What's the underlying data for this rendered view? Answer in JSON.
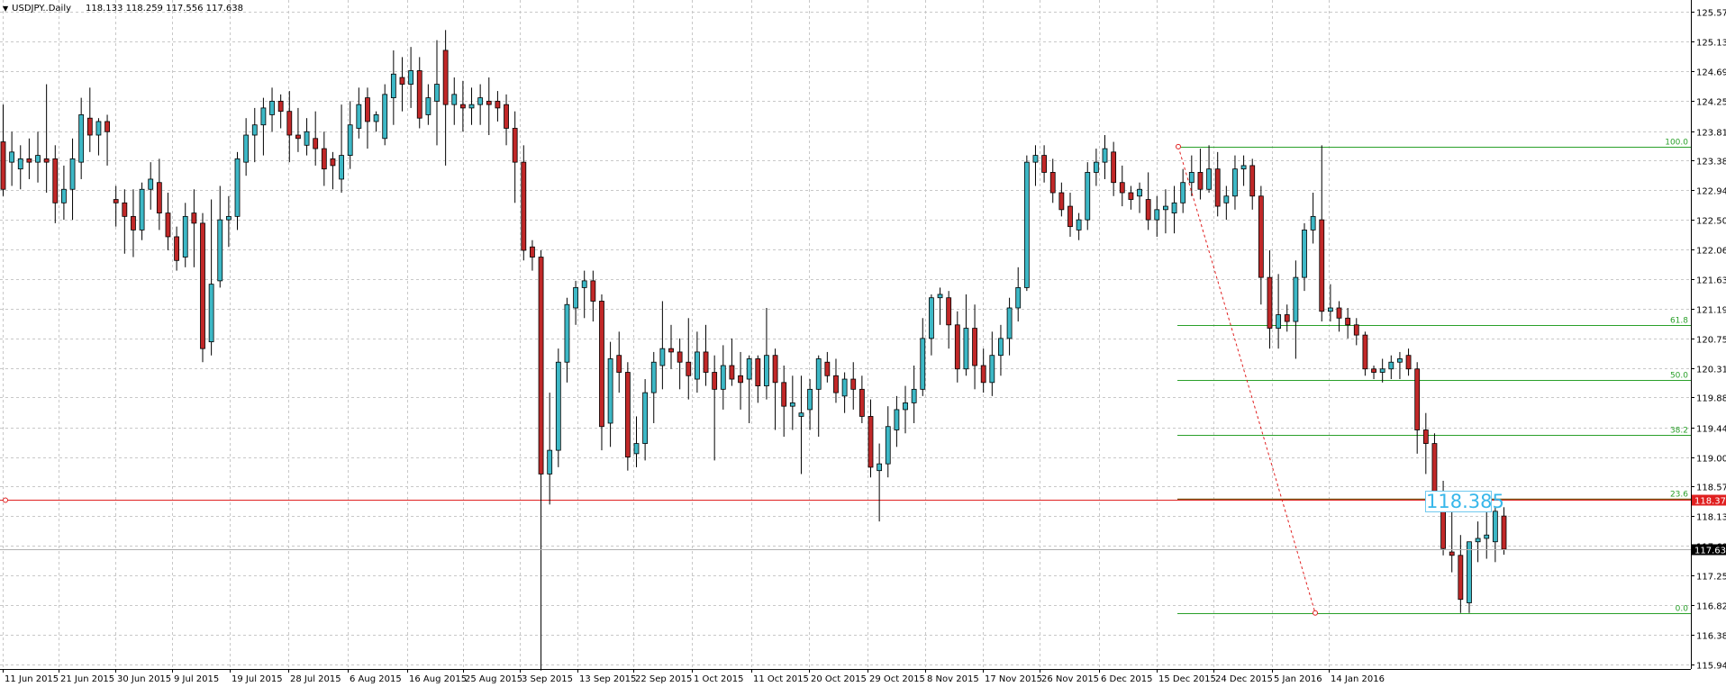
{
  "header": {
    "symbol": "USDJPY..Daily",
    "ohlc": "118.133 118.259 117.556 117.638"
  },
  "colors": {
    "grid": "#c8c8c8",
    "bull_body": "#3db8c6",
    "bear_body": "#c12828",
    "wick": "#000000",
    "fib_level": "#2aa02a",
    "fib_23_line": "#7a5a1a",
    "trend_line": "#e02020",
    "horizontal_line": "#e02020",
    "price_box_text": "#37b7ea",
    "current_price_label_bg": "#000000",
    "red_price_label_bg": "#e02020"
  },
  "fib_price_box": "118.385",
  "chart_data": {
    "type": "candlestick",
    "title": "USDJPY..Daily",
    "ylim": [
      115.94,
      125.57
    ],
    "y_ticks": [
      "125.570",
      "125.130",
      "124.690",
      "124.250",
      "123.810",
      "123.380",
      "122.940",
      "122.500",
      "122.060",
      "121.630",
      "121.190",
      "120.750",
      "120.310",
      "119.880",
      "119.440",
      "119.000",
      "118.570",
      "118.130",
      "117.690",
      "117.250",
      "116.820",
      "116.380",
      "115.940"
    ],
    "x_ticks": [
      "11 Jun 2015",
      "21 Jun 2015",
      "30 Jun 2015",
      "9 Jul 2015",
      "19 Jul 2015",
      "28 Jul 2015",
      "6 Aug 2015",
      "16 Aug 2015",
      "25 Aug 2015",
      "3 Sep 2015",
      "13 Sep 2015",
      "22 Sep 2015",
      "1 Oct 2015",
      "11 Oct 2015",
      "20 Oct 2015",
      "29 Oct 2015",
      "8 Nov 2015",
      "17 Nov 2015",
      "26 Nov 2015",
      "6 Dec 2015",
      "15 Dec 2015",
      "24 Dec 2015",
      "5 Jan 2016",
      "14 Jan 2016"
    ],
    "grid": true,
    "candles": [
      {
        "o": 123.65,
        "h": 124.2,
        "l": 122.85,
        "c": 122.95
      },
      {
        "o": 123.35,
        "h": 123.8,
        "l": 123.0,
        "c": 123.5
      },
      {
        "o": 123.25,
        "h": 123.6,
        "l": 122.95,
        "c": 123.4
      },
      {
        "o": 123.4,
        "h": 123.7,
        "l": 123.1,
        "c": 123.35
      },
      {
        "o": 123.35,
        "h": 123.8,
        "l": 123.05,
        "c": 123.45
      },
      {
        "o": 123.4,
        "h": 124.5,
        "l": 122.9,
        "c": 123.35
      },
      {
        "o": 123.4,
        "h": 123.6,
        "l": 122.45,
        "c": 122.75
      },
      {
        "o": 122.75,
        "h": 123.3,
        "l": 122.5,
        "c": 122.95
      },
      {
        "o": 122.95,
        "h": 123.7,
        "l": 122.5,
        "c": 123.4
      },
      {
        "o": 123.35,
        "h": 124.3,
        "l": 123.1,
        "c": 124.05
      },
      {
        "o": 124.0,
        "h": 124.45,
        "l": 123.5,
        "c": 123.75
      },
      {
        "o": 123.75,
        "h": 124.0,
        "l": 123.45,
        "c": 123.95
      },
      {
        "o": 123.95,
        "h": 124.05,
        "l": 123.3,
        "c": 123.8
      },
      {
        "o": 122.8,
        "h": 123.0,
        "l": 122.4,
        "c": 122.75
      },
      {
        "o": 122.75,
        "h": 122.95,
        "l": 122.0,
        "c": 122.55
      },
      {
        "o": 122.55,
        "h": 122.95,
        "l": 121.95,
        "c": 122.35
      },
      {
        "o": 122.35,
        "h": 123.05,
        "l": 122.2,
        "c": 122.95
      },
      {
        "o": 122.95,
        "h": 123.35,
        "l": 122.65,
        "c": 123.1
      },
      {
        "o": 123.05,
        "h": 123.4,
        "l": 122.35,
        "c": 122.6
      },
      {
        "o": 122.6,
        "h": 122.9,
        "l": 122.05,
        "c": 122.25
      },
      {
        "o": 122.25,
        "h": 122.4,
        "l": 121.75,
        "c": 121.9
      },
      {
        "o": 121.95,
        "h": 122.75,
        "l": 121.8,
        "c": 122.55
      },
      {
        "o": 122.6,
        "h": 122.95,
        "l": 121.8,
        "c": 122.45
      },
      {
        "o": 122.45,
        "h": 122.6,
        "l": 120.4,
        "c": 120.6
      },
      {
        "o": 120.7,
        "h": 122.8,
        "l": 120.5,
        "c": 121.55
      },
      {
        "o": 121.6,
        "h": 123.0,
        "l": 121.5,
        "c": 122.5
      },
      {
        "o": 122.5,
        "h": 122.85,
        "l": 122.1,
        "c": 122.55
      },
      {
        "o": 122.55,
        "h": 123.5,
        "l": 122.35,
        "c": 123.4
      },
      {
        "o": 123.35,
        "h": 124.0,
        "l": 123.15,
        "c": 123.75
      },
      {
        "o": 123.75,
        "h": 124.15,
        "l": 123.35,
        "c": 123.9
      },
      {
        "o": 123.9,
        "h": 124.3,
        "l": 123.45,
        "c": 124.15
      },
      {
        "o": 124.05,
        "h": 124.45,
        "l": 123.8,
        "c": 124.25
      },
      {
        "o": 124.25,
        "h": 124.35,
        "l": 123.85,
        "c": 124.1
      },
      {
        "o": 124.1,
        "h": 124.4,
        "l": 123.35,
        "c": 123.75
      },
      {
        "o": 123.75,
        "h": 124.15,
        "l": 123.5,
        "c": 123.7
      },
      {
        "o": 123.6,
        "h": 124.0,
        "l": 123.45,
        "c": 123.8
      },
      {
        "o": 123.7,
        "h": 124.1,
        "l": 123.3,
        "c": 123.55
      },
      {
        "o": 123.55,
        "h": 123.8,
        "l": 123.0,
        "c": 123.25
      },
      {
        "o": 123.4,
        "h": 123.5,
        "l": 122.95,
        "c": 123.3
      },
      {
        "o": 123.1,
        "h": 124.2,
        "l": 122.9,
        "c": 123.45
      },
      {
        "o": 123.45,
        "h": 124.25,
        "l": 123.25,
        "c": 123.9
      },
      {
        "o": 123.85,
        "h": 124.45,
        "l": 123.7,
        "c": 124.2
      },
      {
        "o": 124.3,
        "h": 124.45,
        "l": 123.55,
        "c": 123.95
      },
      {
        "o": 123.95,
        "h": 124.1,
        "l": 123.8,
        "c": 124.05
      },
      {
        "o": 123.7,
        "h": 124.5,
        "l": 123.6,
        "c": 124.35
      },
      {
        "o": 124.3,
        "h": 125.0,
        "l": 123.9,
        "c": 124.65
      },
      {
        "o": 124.6,
        "h": 124.9,
        "l": 124.1,
        "c": 124.5
      },
      {
        "o": 124.5,
        "h": 125.05,
        "l": 124.15,
        "c": 124.7
      },
      {
        "o": 124.7,
        "h": 124.9,
        "l": 123.85,
        "c": 124.0
      },
      {
        "o": 124.05,
        "h": 124.5,
        "l": 123.9,
        "c": 124.3
      },
      {
        "o": 124.25,
        "h": 125.15,
        "l": 123.6,
        "c": 124.5
      },
      {
        "o": 125.0,
        "h": 125.3,
        "l": 123.3,
        "c": 124.2
      },
      {
        "o": 124.2,
        "h": 124.6,
        "l": 123.9,
        "c": 124.35
      },
      {
        "o": 124.2,
        "h": 124.55,
        "l": 123.8,
        "c": 124.15
      },
      {
        "o": 124.15,
        "h": 124.45,
        "l": 123.9,
        "c": 124.2
      },
      {
        "o": 124.2,
        "h": 124.5,
        "l": 123.9,
        "c": 124.3
      },
      {
        "o": 124.25,
        "h": 124.6,
        "l": 123.75,
        "c": 124.2
      },
      {
        "o": 124.25,
        "h": 124.4,
        "l": 123.95,
        "c": 124.15
      },
      {
        "o": 124.2,
        "h": 124.35,
        "l": 123.6,
        "c": 123.85
      },
      {
        "o": 123.85,
        "h": 124.1,
        "l": 122.75,
        "c": 123.35
      },
      {
        "o": 123.35,
        "h": 123.6,
        "l": 121.9,
        "c": 122.05
      },
      {
        "o": 122.1,
        "h": 122.2,
        "l": 121.75,
        "c": 121.95
      },
      {
        "o": 121.95,
        "h": 122.05,
        "l": 115.85,
        "c": 118.75
      },
      {
        "o": 118.75,
        "h": 119.95,
        "l": 118.3,
        "c": 119.1
      },
      {
        "o": 119.1,
        "h": 120.6,
        "l": 118.85,
        "c": 120.4
      },
      {
        "o": 120.4,
        "h": 121.35,
        "l": 120.1,
        "c": 121.25
      },
      {
        "o": 121.2,
        "h": 121.6,
        "l": 120.95,
        "c": 121.5
      },
      {
        "o": 121.5,
        "h": 121.75,
        "l": 121.05,
        "c": 121.6
      },
      {
        "o": 121.6,
        "h": 121.75,
        "l": 121.0,
        "c": 121.3
      },
      {
        "o": 121.3,
        "h": 121.4,
        "l": 119.1,
        "c": 119.45
      },
      {
        "o": 119.5,
        "h": 120.7,
        "l": 119.15,
        "c": 120.45
      },
      {
        "o": 120.5,
        "h": 120.85,
        "l": 119.95,
        "c": 120.25
      },
      {
        "o": 120.25,
        "h": 120.4,
        "l": 118.8,
        "c": 119.0
      },
      {
        "o": 119.05,
        "h": 119.6,
        "l": 118.85,
        "c": 119.2
      },
      {
        "o": 119.2,
        "h": 120.15,
        "l": 118.95,
        "c": 119.95
      },
      {
        "o": 119.95,
        "h": 120.55,
        "l": 119.5,
        "c": 120.4
      },
      {
        "o": 120.35,
        "h": 121.3,
        "l": 120.0,
        "c": 120.6
      },
      {
        "o": 120.6,
        "h": 120.95,
        "l": 120.3,
        "c": 120.55
      },
      {
        "o": 120.55,
        "h": 120.75,
        "l": 120.0,
        "c": 120.4
      },
      {
        "o": 120.4,
        "h": 121.05,
        "l": 119.85,
        "c": 120.2
      },
      {
        "o": 120.15,
        "h": 120.85,
        "l": 119.95,
        "c": 120.55
      },
      {
        "o": 120.55,
        "h": 120.95,
        "l": 120.05,
        "c": 120.25
      },
      {
        "o": 120.25,
        "h": 120.5,
        "l": 118.95,
        "c": 120.0
      },
      {
        "o": 120.0,
        "h": 120.65,
        "l": 119.7,
        "c": 120.35
      },
      {
        "o": 120.35,
        "h": 120.75,
        "l": 120.05,
        "c": 120.15
      },
      {
        "o": 120.2,
        "h": 120.55,
        "l": 119.7,
        "c": 120.1
      },
      {
        "o": 120.15,
        "h": 120.5,
        "l": 119.5,
        "c": 120.45
      },
      {
        "o": 120.45,
        "h": 120.5,
        "l": 119.8,
        "c": 120.05
      },
      {
        "o": 120.05,
        "h": 121.2,
        "l": 119.85,
        "c": 120.5
      },
      {
        "o": 120.5,
        "h": 120.6,
        "l": 119.4,
        "c": 120.1
      },
      {
        "o": 120.1,
        "h": 120.35,
        "l": 119.3,
        "c": 119.75
      },
      {
        "o": 119.75,
        "h": 120.2,
        "l": 119.4,
        "c": 119.8
      },
      {
        "o": 119.6,
        "h": 120.2,
        "l": 118.75,
        "c": 119.65
      },
      {
        "o": 119.7,
        "h": 120.15,
        "l": 119.4,
        "c": 120.0
      },
      {
        "o": 120.0,
        "h": 120.5,
        "l": 119.3,
        "c": 120.45
      },
      {
        "o": 120.4,
        "h": 120.55,
        "l": 120.1,
        "c": 120.2
      },
      {
        "o": 120.2,
        "h": 120.45,
        "l": 119.8,
        "c": 119.95
      },
      {
        "o": 119.9,
        "h": 120.25,
        "l": 119.65,
        "c": 120.15
      },
      {
        "o": 120.15,
        "h": 120.4,
        "l": 119.7,
        "c": 120.0
      },
      {
        "o": 120.0,
        "h": 120.2,
        "l": 119.5,
        "c": 119.6
      },
      {
        "o": 119.6,
        "h": 119.85,
        "l": 118.7,
        "c": 118.85
      },
      {
        "o": 118.8,
        "h": 119.2,
        "l": 118.05,
        "c": 118.9
      },
      {
        "o": 118.9,
        "h": 119.75,
        "l": 118.7,
        "c": 119.45
      },
      {
        "o": 119.4,
        "h": 119.9,
        "l": 119.15,
        "c": 119.7
      },
      {
        "o": 119.7,
        "h": 120.05,
        "l": 119.35,
        "c": 119.8
      },
      {
        "o": 119.8,
        "h": 120.35,
        "l": 119.5,
        "c": 120.0
      },
      {
        "o": 120.0,
        "h": 121.05,
        "l": 119.9,
        "c": 120.75
      },
      {
        "o": 120.75,
        "h": 121.4,
        "l": 120.5,
        "c": 121.35
      },
      {
        "o": 121.35,
        "h": 121.5,
        "l": 120.95,
        "c": 121.4
      },
      {
        "o": 121.35,
        "h": 121.45,
        "l": 120.6,
        "c": 120.95
      },
      {
        "o": 120.95,
        "h": 121.15,
        "l": 120.1,
        "c": 120.3
      },
      {
        "o": 120.3,
        "h": 121.4,
        "l": 120.2,
        "c": 120.9
      },
      {
        "o": 120.9,
        "h": 121.25,
        "l": 120.0,
        "c": 120.35
      },
      {
        "o": 120.35,
        "h": 120.6,
        "l": 119.95,
        "c": 120.1
      },
      {
        "o": 120.1,
        "h": 120.85,
        "l": 119.9,
        "c": 120.5
      },
      {
        "o": 120.5,
        "h": 120.95,
        "l": 120.2,
        "c": 120.75
      },
      {
        "o": 120.75,
        "h": 121.35,
        "l": 120.5,
        "c": 121.2
      },
      {
        "o": 121.2,
        "h": 121.8,
        "l": 121.0,
        "c": 121.5
      },
      {
        "o": 121.5,
        "h": 123.45,
        "l": 121.45,
        "c": 123.35
      },
      {
        "o": 123.35,
        "h": 123.6,
        "l": 123.0,
        "c": 123.45
      },
      {
        "o": 123.45,
        "h": 123.6,
        "l": 123.05,
        "c": 123.2
      },
      {
        "o": 123.2,
        "h": 123.4,
        "l": 122.75,
        "c": 122.9
      },
      {
        "o": 122.9,
        "h": 123.05,
        "l": 122.55,
        "c": 122.65
      },
      {
        "o": 122.7,
        "h": 122.9,
        "l": 122.25,
        "c": 122.4
      },
      {
        "o": 122.35,
        "h": 122.6,
        "l": 122.2,
        "c": 122.5
      },
      {
        "o": 122.5,
        "h": 123.35,
        "l": 122.35,
        "c": 123.2
      },
      {
        "o": 123.2,
        "h": 123.55,
        "l": 123.0,
        "c": 123.35
      },
      {
        "o": 123.35,
        "h": 123.75,
        "l": 123.1,
        "c": 123.55
      },
      {
        "o": 123.5,
        "h": 123.65,
        "l": 122.85,
        "c": 123.05
      },
      {
        "o": 123.05,
        "h": 123.3,
        "l": 122.7,
        "c": 122.9
      },
      {
        "o": 122.9,
        "h": 123.0,
        "l": 122.65,
        "c": 122.8
      },
      {
        "o": 122.85,
        "h": 123.05,
        "l": 122.6,
        "c": 122.95
      },
      {
        "o": 122.8,
        "h": 123.2,
        "l": 122.35,
        "c": 122.5
      },
      {
        "o": 122.5,
        "h": 122.85,
        "l": 122.25,
        "c": 122.65
      },
      {
        "o": 122.65,
        "h": 122.95,
        "l": 122.3,
        "c": 122.7
      },
      {
        "o": 122.6,
        "h": 123.0,
        "l": 122.3,
        "c": 122.75
      },
      {
        "o": 122.75,
        "h": 123.25,
        "l": 122.6,
        "c": 123.05
      },
      {
        "o": 123.05,
        "h": 123.45,
        "l": 122.85,
        "c": 123.2
      },
      {
        "o": 123.2,
        "h": 123.55,
        "l": 122.8,
        "c": 122.95
      },
      {
        "o": 122.95,
        "h": 123.6,
        "l": 122.9,
        "c": 123.25
      },
      {
        "o": 123.25,
        "h": 123.5,
        "l": 122.55,
        "c": 122.7
      },
      {
        "o": 122.75,
        "h": 123.0,
        "l": 122.5,
        "c": 122.85
      },
      {
        "o": 122.85,
        "h": 123.45,
        "l": 122.65,
        "c": 123.25
      },
      {
        "o": 123.25,
        "h": 123.45,
        "l": 123.0,
        "c": 123.3
      },
      {
        "o": 123.3,
        "h": 123.4,
        "l": 122.65,
        "c": 122.85
      },
      {
        "o": 122.85,
        "h": 123.0,
        "l": 121.25,
        "c": 121.65
      },
      {
        "o": 121.65,
        "h": 122.05,
        "l": 120.6,
        "c": 120.9
      },
      {
        "o": 120.9,
        "h": 121.7,
        "l": 120.6,
        "c": 121.1
      },
      {
        "o": 121.1,
        "h": 121.25,
        "l": 120.85,
        "c": 121.0
      },
      {
        "o": 121.0,
        "h": 121.9,
        "l": 120.45,
        "c": 121.65
      },
      {
        "o": 121.65,
        "h": 122.45,
        "l": 121.45,
        "c": 122.35
      },
      {
        "o": 122.35,
        "h": 122.9,
        "l": 122.15,
        "c": 122.55
      },
      {
        "o": 122.5,
        "h": 123.6,
        "l": 121.0,
        "c": 121.15
      },
      {
        "o": 121.15,
        "h": 121.55,
        "l": 121.0,
        "c": 121.2
      },
      {
        "o": 121.2,
        "h": 121.3,
        "l": 120.85,
        "c": 121.05
      },
      {
        "o": 121.05,
        "h": 121.2,
        "l": 120.75,
        "c": 120.95
      },
      {
        "o": 120.95,
        "h": 121.05,
        "l": 120.65,
        "c": 120.8
      },
      {
        "o": 120.8,
        "h": 120.85,
        "l": 120.2,
        "c": 120.3
      },
      {
        "o": 120.3,
        "h": 120.35,
        "l": 120.15,
        "c": 120.25
      },
      {
        "o": 120.25,
        "h": 120.45,
        "l": 120.1,
        "c": 120.3
      },
      {
        "o": 120.3,
        "h": 120.5,
        "l": 120.15,
        "c": 120.4
      },
      {
        "o": 120.4,
        "h": 120.55,
        "l": 120.15,
        "c": 120.45
      },
      {
        "o": 120.5,
        "h": 120.6,
        "l": 120.2,
        "c": 120.3
      },
      {
        "o": 120.3,
        "h": 120.4,
        "l": 119.05,
        "c": 119.4
      },
      {
        "o": 119.4,
        "h": 119.65,
        "l": 118.75,
        "c": 119.2
      },
      {
        "o": 119.2,
        "h": 119.35,
        "l": 118.25,
        "c": 118.35
      },
      {
        "o": 118.35,
        "h": 118.65,
        "l": 117.55,
        "c": 117.65
      },
      {
        "o": 117.6,
        "h": 118.45,
        "l": 117.3,
        "c": 117.55
      },
      {
        "o": 117.55,
        "h": 117.85,
        "l": 116.7,
        "c": 116.9
      },
      {
        "o": 116.85,
        "h": 117.75,
        "l": 116.7,
        "c": 117.75
      },
      {
        "o": 117.75,
        "h": 118.05,
        "l": 117.45,
        "c": 117.8
      },
      {
        "o": 117.8,
        "h": 118.35,
        "l": 117.5,
        "c": 117.85
      },
      {
        "o": 117.75,
        "h": 118.25,
        "l": 117.45,
        "c": 118.2
      },
      {
        "o": 118.13,
        "h": 118.26,
        "l": 117.56,
        "c": 117.64
      }
    ],
    "fibonacci": {
      "high": 123.58,
      "low": 116.7,
      "levels": [
        {
          "label": "100.0",
          "price": 123.58
        },
        {
          "label": "61.8",
          "price": 120.95
        },
        {
          "label": "50.0",
          "price": 120.14
        },
        {
          "label": "38.2",
          "price": 119.33
        },
        {
          "label": "23.6",
          "price": 118.385
        },
        {
          "label": "0.0",
          "price": 116.7
        }
      ]
    },
    "horizontal_line": {
      "price": 118.372,
      "label": "118.372"
    },
    "current_price": {
      "price": 117.638,
      "label": "117.638"
    }
  }
}
